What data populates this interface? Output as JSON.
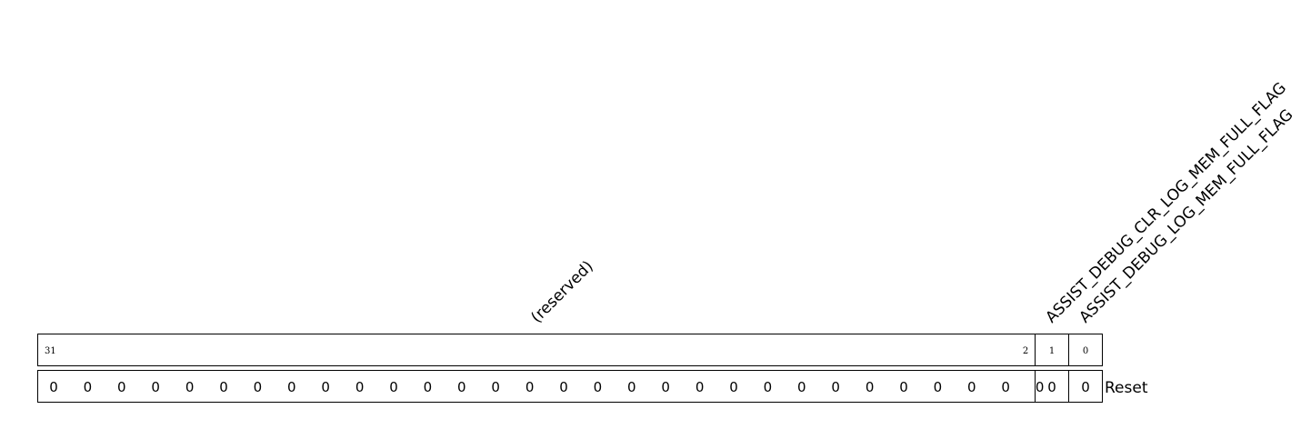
{
  "register": {
    "fields": [
      {
        "name": "(reserved)",
        "msb": 31,
        "lsb": 2,
        "msb_label": "31",
        "lsb_label": "2"
      },
      {
        "name": "ASSIST_DEBUG_CLR_LOG_MEM_FULL_FLAG",
        "msb": 1,
        "lsb": 1,
        "msb_label": "1"
      },
      {
        "name": "ASSIST_DEBUG_LOG_MEM_FULL_FLAG",
        "msb": 0,
        "lsb": 0,
        "msb_label": "0"
      }
    ],
    "reset_values": [
      "0",
      "0",
      "0",
      "0",
      "0",
      "0",
      "0",
      "0",
      "0",
      "0",
      "0",
      "0",
      "0",
      "0",
      "0",
      "0",
      "0",
      "0",
      "0",
      "0",
      "0",
      "0",
      "0",
      "0",
      "0",
      "0",
      "0",
      "0",
      "0",
      "0",
      "0",
      "0"
    ],
    "reset_label": "Reset"
  }
}
